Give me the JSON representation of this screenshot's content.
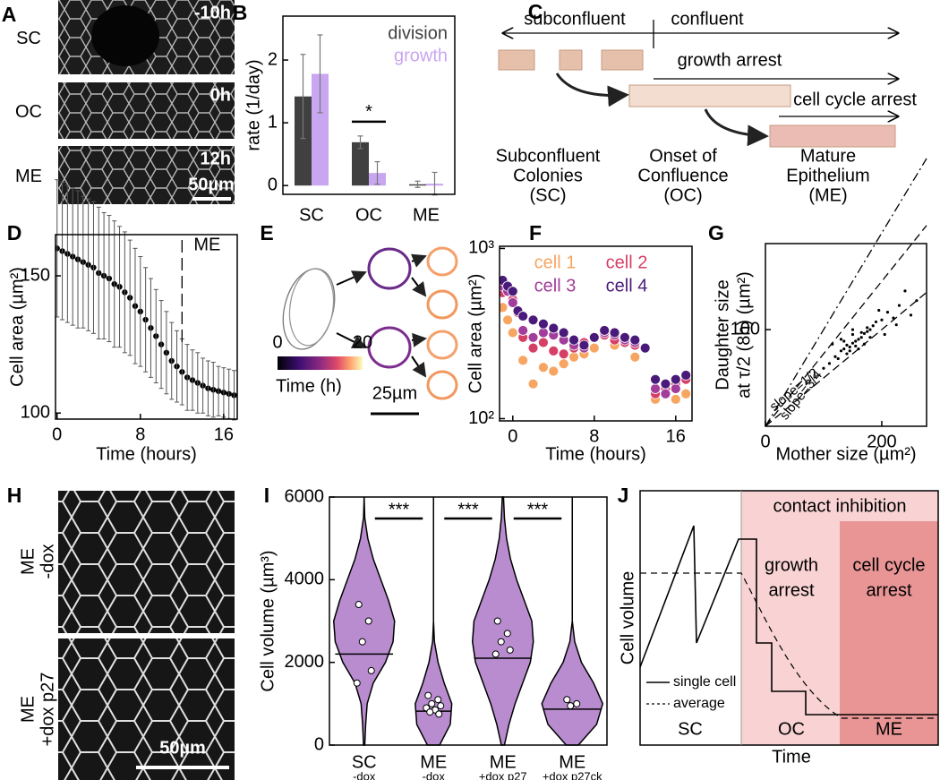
{
  "panel_a": {
    "label": "A",
    "rows": [
      {
        "name": "SC",
        "time": "-10h"
      },
      {
        "name": "OC",
        "time": "0h"
      },
      {
        "name": "ME",
        "time": "12h"
      }
    ],
    "scale_bar": "50µm"
  },
  "panel_b": {
    "label": "B",
    "ylabel": "rate (1/day)",
    "categories": [
      "SC",
      "OC",
      "ME"
    ],
    "series": [
      {
        "name": "division",
        "color": "#404040",
        "values": [
          1.42,
          0.69,
          0.02
        ],
        "errors": [
          0.67,
          0.1,
          0.05
        ]
      },
      {
        "name": "growth",
        "color": "#c9a6f0",
        "values": [
          1.78,
          0.2,
          0.03
        ],
        "errors": [
          0.62,
          0.18,
          0.18
        ]
      }
    ],
    "ylim": [
      -0.14,
      2.7
    ],
    "yticks": [
      0,
      1,
      2
    ],
    "significance": "*"
  },
  "panel_c": {
    "label": "C",
    "phases": [
      "subconfluent",
      "confluent"
    ],
    "arrests": [
      "growth arrest",
      "cell cycle arrest"
    ],
    "stages": [
      {
        "lines": [
          "Subconfluent",
          "Colonies",
          "(SC)"
        ]
      },
      {
        "lines": [
          "Onset of",
          "Confluence",
          "(OC)"
        ]
      },
      {
        "lines": [
          "Mature",
          "Epithelium",
          "(ME)"
        ]
      }
    ]
  },
  "panel_d": {
    "label": "D",
    "xlabel": "Time (hours)",
    "ylabel": "Cell area (µm²)",
    "x": [
      0,
      0.5,
      1,
      1.5,
      2,
      2.5,
      3,
      3.5,
      4,
      4.5,
      5,
      5.5,
      6,
      6.5,
      7,
      7.5,
      8,
      8.5,
      9,
      9.5,
      10,
      10.5,
      11,
      11.5,
      12,
      12.5,
      13,
      13.5,
      14,
      14.5,
      15,
      15.5,
      16,
      16.5,
      17
    ],
    "mean": [
      160,
      159,
      158,
      157,
      156,
      155,
      154,
      153,
      151,
      150,
      149,
      147,
      146,
      144,
      142,
      139,
      137,
      134,
      131,
      128,
      125,
      122,
      119,
      117,
      115,
      113,
      112,
      111,
      110,
      109,
      108.5,
      108,
      107.5,
      107,
      106.5
    ],
    "errors": [
      25,
      25,
      25,
      25,
      25,
      24,
      24,
      24,
      24,
      23,
      23,
      23,
      22,
      22,
      21,
      21,
      20,
      19,
      18,
      17,
      16,
      15,
      14,
      13,
      12,
      12,
      11,
      11,
      10,
      10,
      10,
      9,
      9,
      9,
      9
    ],
    "xlim": [
      -0.15,
      17.3
    ],
    "ylim": [
      97.8,
      165
    ],
    "xticks": [
      0,
      8,
      16
    ],
    "yticks": [
      100,
      150
    ],
    "marker": {
      "label": "ME",
      "x": 12
    }
  },
  "panel_e": {
    "label": "E",
    "clim": [
      0,
      20
    ],
    "cticks": [
      0,
      20
    ],
    "clabel": "Time (h)",
    "scale_bar": "25µm"
  },
  "panel_f": {
    "label": "F",
    "xlabel": "Time (hours)",
    "ylabel": "Cell area (µm²)",
    "log_y": true,
    "xlim": [
      -1.3,
      17.6
    ],
    "ylim": [
      97,
      1030
    ],
    "xticks": [
      0,
      8,
      16
    ],
    "yticks": [
      {
        "value": 100,
        "label": "10²"
      },
      {
        "value": 1000,
        "label": "10³"
      }
    ],
    "series": [
      {
        "name": "cell 1",
        "color": "#f7a562",
        "x": [
          -1,
          -0.5,
          0,
          1,
          2,
          3,
          4,
          5,
          6,
          7,
          8,
          10,
          12,
          14,
          15,
          16,
          17
        ],
        "y": [
          450,
          380,
          320,
          220,
          160,
          200,
          190,
          210,
          230,
          240,
          260,
          270,
          230,
          130,
          140,
          130,
          140
        ]
      },
      {
        "name": "cell 2",
        "color": "#d63f66",
        "x": [
          -1,
          0,
          0.5,
          1,
          2,
          3,
          4,
          5,
          6,
          7,
          8,
          9,
          10,
          11,
          12,
          14,
          15,
          16,
          17
        ],
        "y": [
          550,
          500,
          420,
          300,
          260,
          280,
          250,
          240,
          260,
          280,
          300,
          310,
          290,
          280,
          270,
          140,
          150,
          160,
          170
        ]
      },
      {
        "name": "cell 3",
        "color": "#a23d9b",
        "x": [
          -1,
          -0.5,
          0,
          1,
          2,
          3,
          4,
          5,
          6,
          7,
          8,
          9,
          10,
          11,
          12,
          14,
          15,
          16
        ],
        "y": [
          600,
          560,
          480,
          330,
          300,
          320,
          310,
          290,
          270,
          260,
          300,
          320,
          310,
          290,
          280,
          150,
          140,
          150
        ]
      },
      {
        "name": "cell 4",
        "color": "#4a1a7a",
        "x": [
          -1,
          -0.5,
          0,
          0.5,
          1,
          2,
          3,
          4,
          5,
          6,
          7,
          8,
          9,
          10,
          11,
          12,
          13,
          14,
          15,
          16,
          17
        ],
        "y": [
          650,
          600,
          560,
          430,
          400,
          380,
          360,
          340,
          320,
          290,
          270,
          300,
          330,
          320,
          300,
          290,
          260,
          170,
          160,
          170,
          180
        ]
      }
    ]
  },
  "panel_g": {
    "label": "G",
    "xlabel": "Mother size (µm²)",
    "ylabel": [
      "Daughter size",
      "at τ/2 (8h) (µm²)"
    ],
    "xlim": [
      0,
      277
    ],
    "ylim": [
      0,
      189
    ],
    "xticks": [
      0,
      200
    ],
    "yticks": [
      100
    ],
    "x": [
      120,
      130,
      140,
      150,
      160,
      170,
      180,
      125,
      135,
      145,
      155,
      165,
      175,
      185,
      110,
      190,
      200,
      210,
      220,
      230,
      150,
      160,
      140,
      130,
      170,
      180,
      100,
      240,
      260,
      150,
      145,
      155,
      165,
      135,
      175,
      115,
      205,
      195,
      225,
      250
    ],
    "y": [
      72,
      78,
      84,
      86,
      90,
      96,
      100,
      70,
      80,
      82,
      88,
      92,
      98,
      104,
      65,
      108,
      110,
      118,
      112,
      125,
      95,
      80,
      75,
      90,
      85,
      92,
      60,
      140,
      130,
      100,
      78,
      83,
      97,
      88,
      102,
      85,
      95,
      120,
      105,
      115
    ],
    "lines": [
      {
        "slope": 1
      },
      {
        "slope": 0.75,
        "label": "slope=3/4"
      },
      {
        "slope": 0.5,
        "label": "slope=1/2"
      }
    ]
  },
  "panel_h": {
    "label": "H",
    "images": [
      {
        "lines": [
          "ME",
          "-dox"
        ]
      },
      {
        "lines": [
          "ME",
          "+dox p27"
        ]
      }
    ],
    "scale_bar": "50µm"
  },
  "panel_i": {
    "label": "I",
    "ylabel": "Cell volume (µm³)",
    "ylim": [
      0,
      6000
    ],
    "yticks": [
      0,
      2000,
      4000,
      6000
    ],
    "grid": [
      0,
      500,
      1000,
      1500,
      2000,
      2500,
      3000,
      3500,
      4000,
      4500,
      5000,
      5500,
      6000
    ],
    "violins": [
      {
        "name": "SC",
        "condition": "-dox",
        "density": [
          0.02,
          0.05,
          0.1,
          0.3,
          0.7,
          0.95,
          1.0,
          0.8,
          0.55,
          0.3,
          0.12,
          0.02,
          0
        ],
        "median": 2200,
        "points": [
          3400,
          3000,
          2500,
          1800,
          1500
        ]
      },
      {
        "name": "ME",
        "condition": "-dox",
        "density": [
          0.2,
          0.55,
          0.6,
          0.35,
          0.15,
          0.03,
          0,
          0,
          0,
          0,
          0,
          0,
          0
        ],
        "median": 820,
        "points": [
          1200,
          1100,
          1000,
          950,
          900,
          850,
          800,
          750
        ]
      },
      {
        "name": "ME",
        "condition": "+dox p27",
        "density": [
          0.05,
          0.2,
          0.4,
          0.65,
          0.9,
          1.0,
          0.95,
          0.7,
          0.45,
          0.25,
          0.12,
          0.05,
          0.02
        ],
        "median": 2100,
        "points": [
          3000,
          2700,
          2500,
          2300,
          2200
        ]
      },
      {
        "name": "ME",
        "condition": "+dox p27ck",
        "density": [
          0.2,
          0.8,
          1.0,
          0.7,
          0.3,
          0.08,
          0,
          0,
          0,
          0,
          0,
          0,
          0
        ],
        "median": 870,
        "points": [
          1100,
          1000,
          950
        ]
      }
    ],
    "significance": [
      "***",
      "***",
      "***"
    ]
  },
  "panel_j": {
    "label": "J",
    "ylabel": "Cell volume",
    "xlabel": "Time",
    "band": "contact inhibition",
    "regions": [
      {
        "lines": [
          "growth",
          "arrest"
        ]
      },
      {
        "lines": [
          "cell cycle",
          "arrest"
        ]
      }
    ],
    "phases": [
      "SC",
      "OC",
      "ME"
    ],
    "legend": [
      "single cell",
      "average"
    ]
  }
}
